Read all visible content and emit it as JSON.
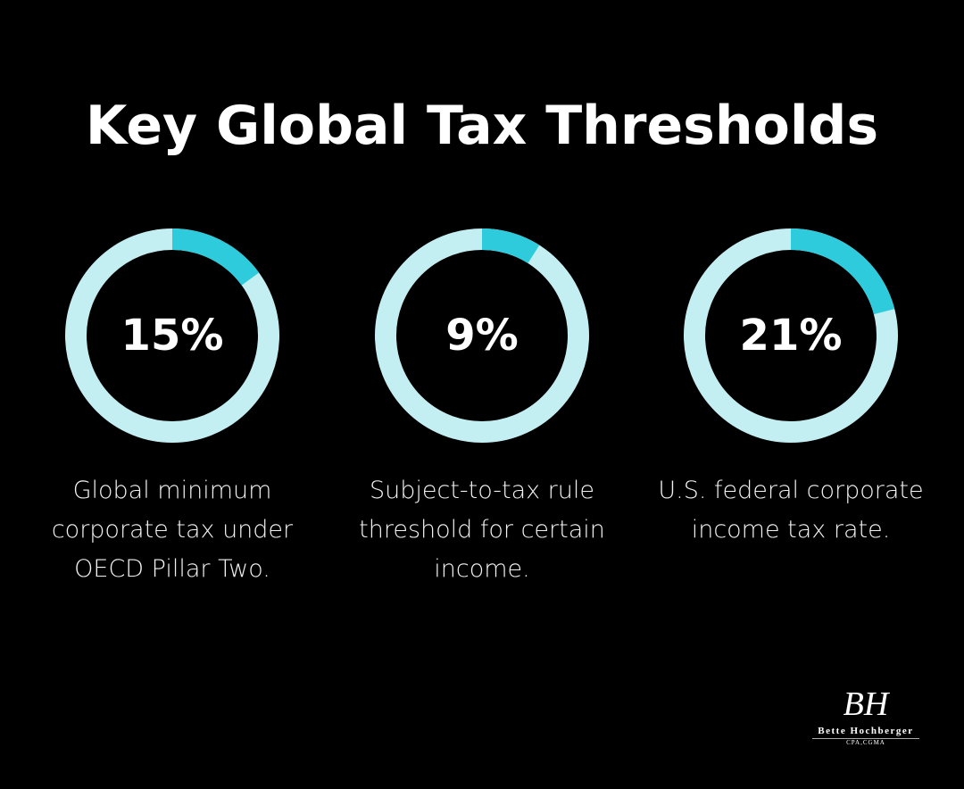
{
  "title": "Key Global Tax Thresholds",
  "chart_data": [
    {
      "type": "donut",
      "values": [
        15
      ],
      "value_labels": [
        "15%"
      ],
      "ylim": [
        0,
        100
      ],
      "color": "#2ecbdc",
      "track_color": "#c3eff3",
      "caption": "Global minimum corporate tax under OECD Pillar Two."
    },
    {
      "type": "donut",
      "values": [
        9
      ],
      "value_labels": [
        "9%"
      ],
      "ylim": [
        0,
        100
      ],
      "color": "#2ecbdc",
      "track_color": "#c3eff3",
      "caption": "Subject-to-tax rule threshold for certain income."
    },
    {
      "type": "donut",
      "values": [
        21
      ],
      "value_labels": [
        "21%"
      ],
      "ylim": [
        0,
        100
      ],
      "color": "#2ecbdc",
      "track_color": "#c3eff3",
      "caption": "U.S. federal corporate income tax rate."
    }
  ],
  "logo": {
    "monogram": "BH",
    "name": "Bette Hochberger",
    "credentials": "CPA,CGMA"
  }
}
